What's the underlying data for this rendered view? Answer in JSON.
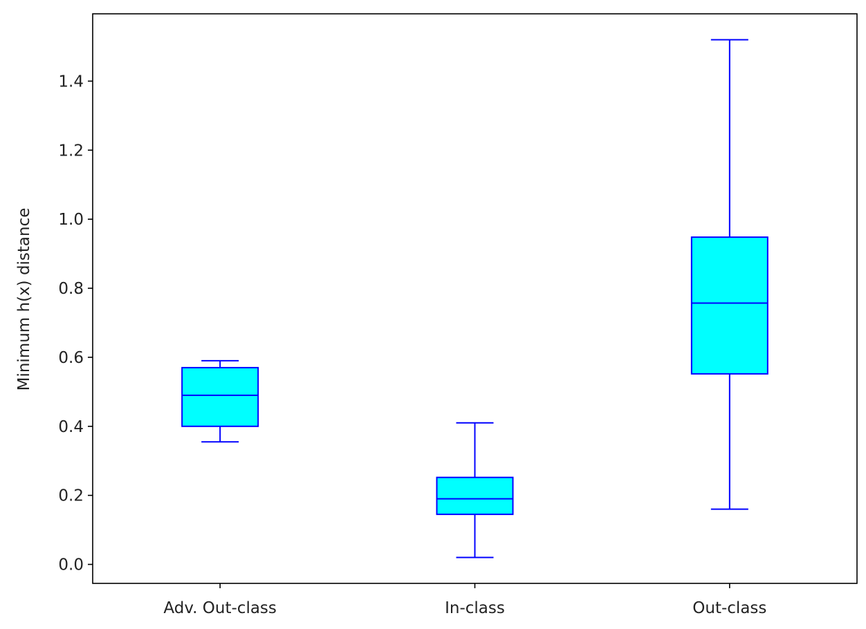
{
  "chart_data": {
    "type": "box",
    "title": "",
    "xlabel": "",
    "ylabel": "Minimum h(x) distance",
    "categories": [
      "Adv. Out-class",
      "In-class",
      "Out-class"
    ],
    "boxes": [
      {
        "category": "Adv. Out-class",
        "whisker_low": 0.355,
        "q1": 0.4,
        "median": 0.49,
        "q3": 0.57,
        "whisker_high": 0.59
      },
      {
        "category": "In-class",
        "whisker_low": 0.02,
        "q1": 0.145,
        "median": 0.19,
        "q3": 0.252,
        "whisker_high": 0.41
      },
      {
        "category": "Out-class",
        "whisker_low": 0.16,
        "q1": 0.552,
        "median": 0.757,
        "q3": 0.948,
        "whisker_high": 1.52
      }
    ],
    "ylim": [
      -0.055,
      1.595
    ],
    "yticks": [
      "0.0",
      "0.2",
      "0.4",
      "0.6",
      "0.8",
      "1.0",
      "1.2",
      "1.4"
    ],
    "grid": false,
    "legend": "none",
    "colors": {
      "box_fill": "#00ffff",
      "box_edge": "#0000ff",
      "axis": "#000000",
      "background": "#ffffff"
    }
  }
}
